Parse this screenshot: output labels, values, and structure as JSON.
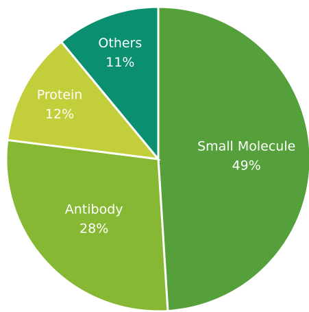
{
  "chart_data": {
    "type": "pie",
    "categories": [
      "Small Molecule",
      "Antibody",
      "Protein",
      "Others"
    ],
    "values": [
      49,
      28,
      12,
      11
    ],
    "value_labels": [
      "49%",
      "28%",
      "12%",
      "11%"
    ],
    "colors": [
      "#55a03a",
      "#86b834",
      "#c3cf3a",
      "#0a9070"
    ]
  }
}
